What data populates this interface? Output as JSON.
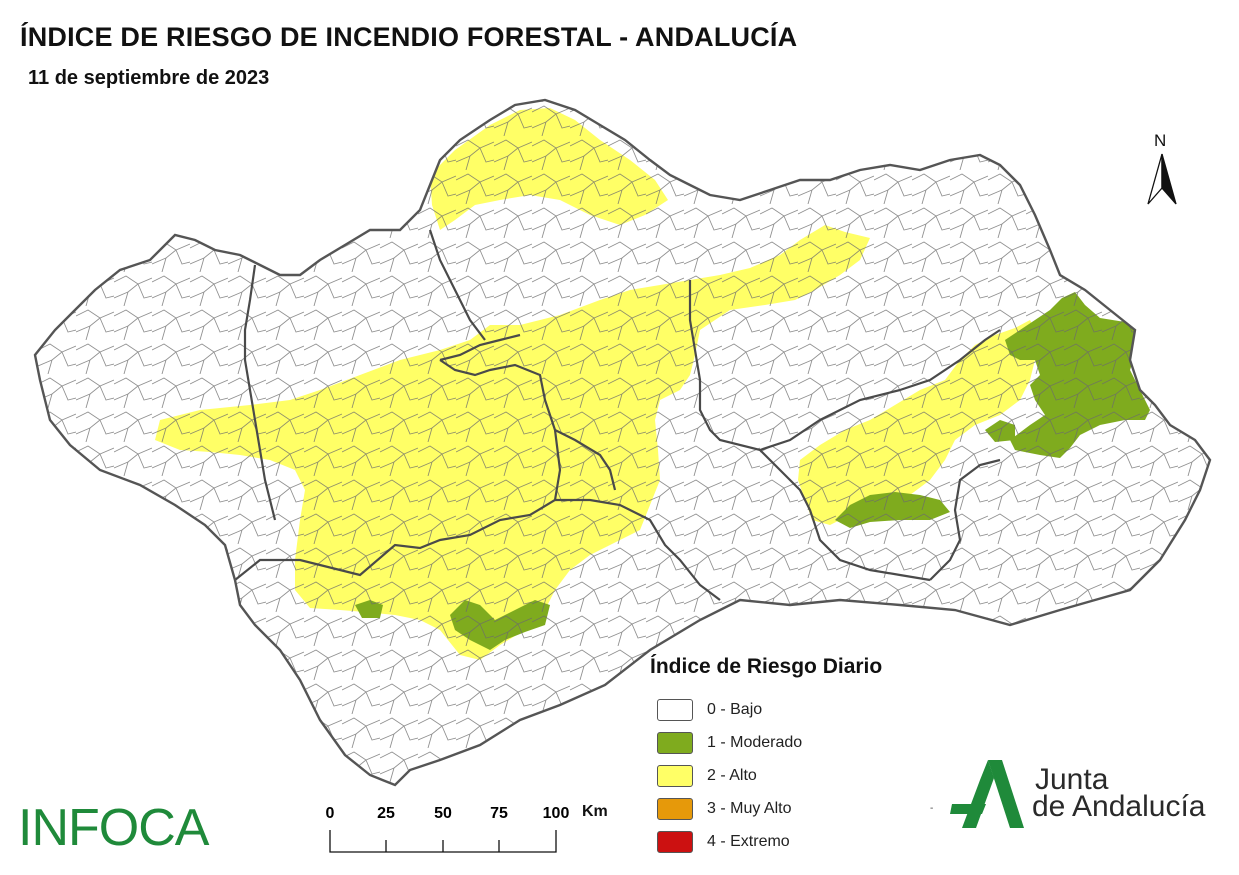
{
  "header": {
    "title": "ÍNDICE DE RIESGO DE INCENDIO FORESTAL - ANDALUCÍA",
    "date": "11 de septiembre de 2023"
  },
  "north": {
    "label": "N",
    "icon": "north-arrow-icon"
  },
  "legend": {
    "title": "Índice de Riesgo Diario",
    "items": [
      {
        "label": "0 - Bajo",
        "color": "#ffffff"
      },
      {
        "label": "1 - Moderado",
        "color": "#7fab1e"
      },
      {
        "label": "2 - Alto",
        "color": "#ffff66"
      },
      {
        "label": "3 - Muy Alto",
        "color": "#e6990a"
      },
      {
        "label": "4 - Extremo",
        "color": "#cc1111"
      }
    ]
  },
  "scale_bar": {
    "ticks": [
      "0",
      "25",
      "50",
      "75",
      "100"
    ],
    "unit": "Km"
  },
  "brand": {
    "infoca": "INFOCA"
  },
  "junta": {
    "line1": "Junta",
    "line2": "de Andalucía",
    "icon": "junta-logo-icon"
  },
  "map_colors": {
    "outline": "#555555",
    "province_border": "#444444",
    "bajo": "#ffffff",
    "moderado": "#7fab1e",
    "alto": "#ffff66"
  }
}
